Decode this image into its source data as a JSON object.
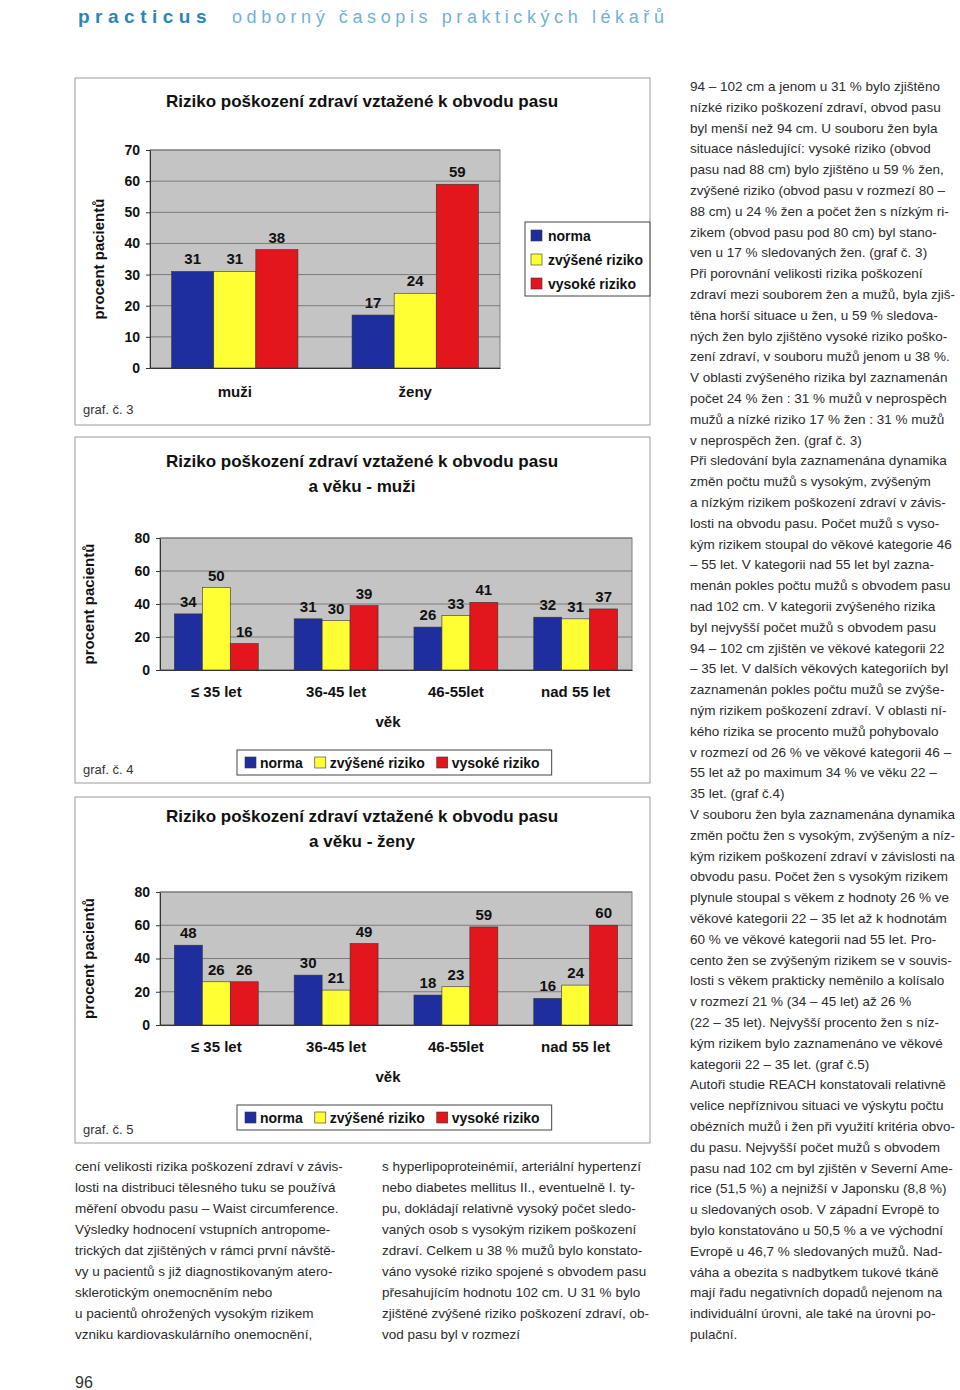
{
  "header": {
    "brand": "practicus",
    "subtitle": "odborný časopis praktických lékařů"
  },
  "chart_data": [
    {
      "type": "bar",
      "title": [
        "Riziko poškození zdraví vztažené k obvodu pasu"
      ],
      "y_label": "procent pacientů",
      "categories": [
        "muži",
        "ženy"
      ],
      "series": [
        {
          "name": "norma",
          "color": "#1f2e9e",
          "values": [
            31,
            17
          ]
        },
        {
          "name": "zvýšené riziko",
          "color": "#ffff33",
          "values": [
            31,
            24
          ]
        },
        {
          "name": "vysoké riziko",
          "color": "#e3161c",
          "values": [
            38,
            59
          ]
        }
      ],
      "ylim": [
        0,
        70
      ],
      "yticks": [
        0,
        10,
        20,
        30,
        40,
        50,
        60,
        70
      ],
      "grid": true,
      "legend": "right",
      "data_labels": true,
      "caption": "graf. č. 3"
    },
    {
      "type": "bar",
      "title": [
        "Riziko poškození zdraví vztažené k obvodu pasu",
        "a věku - muži"
      ],
      "y_label": "procent pacientů",
      "x_label": "věk",
      "categories": [
        "≤ 35 let",
        "36-45 let",
        "46-55let",
        "nad 55 let"
      ],
      "series": [
        {
          "name": "norma",
          "color": "#1f2e9e",
          "values": [
            34,
            31,
            26,
            32
          ]
        },
        {
          "name": "zvýšené riziko",
          "color": "#ffff33",
          "values": [
            50,
            30,
            33,
            31
          ]
        },
        {
          "name": "vysoké riziko",
          "color": "#e3161c",
          "values": [
            16,
            39,
            41,
            37
          ]
        }
      ],
      "ylim": [
        0,
        80
      ],
      "yticks": [
        0,
        20,
        40,
        60,
        80
      ],
      "grid": true,
      "legend": "bottom",
      "data_labels": true,
      "caption": "graf. č. 4"
    },
    {
      "type": "bar",
      "title": [
        "Riziko poškození zdraví vztažené k obvodu pasu",
        "a věku - ženy"
      ],
      "y_label": "procent pacientů",
      "x_label": "věk",
      "categories": [
        "≤ 35 let",
        "36-45 let",
        "46-55let",
        "nad 55 let"
      ],
      "series": [
        {
          "name": "norma",
          "color": "#1f2e9e",
          "values": [
            48,
            30,
            18,
            16
          ]
        },
        {
          "name": "zvýšené riziko",
          "color": "#ffff33",
          "values": [
            26,
            21,
            23,
            24
          ]
        },
        {
          "name": "vysoké riziko",
          "color": "#e3161c",
          "values": [
            26,
            49,
            59,
            60
          ]
        }
      ],
      "ylim": [
        0,
        80
      ],
      "yticks": [
        0,
        20,
        40,
        60,
        80
      ],
      "grid": true,
      "legend": "bottom",
      "data_labels": true,
      "caption": "graf. č. 5"
    }
  ],
  "columns": [
    {
      "lines": [
        "cení velikosti rizika poškození zdraví v závis-",
        "losti na distribuci tělesného tuku se používá",
        "měření obvodu pasu – Waist circumference.",
        "Výsledky hodnocení vstupních antropome-",
        "trických dat zjištěných v rámci první návště-",
        "vy u pacientů s již diagnostikovaným atero-",
        "sklerotickým onemocněním nebo",
        "u pacientů ohrožených vysokým rizikem",
        "vzniku kardiovaskulárního onemocnění,"
      ]
    },
    {
      "lines": [
        "s hyperlipoproteinémií, arteriální hypertenzí",
        "nebo diabetes mellitus II., eventuelně I. ty-",
        "pu, dokládají relativně vysoký počet sledo-",
        "vaných osob s vysokým rizikem poškození",
        "zdraví. Celkem u 38 % mužů bylo konstato-",
        "váno vysoké riziko spojené s obvodem pasu",
        "přesahujícím hodnotu 102 cm. U 31 % bylo",
        "zjištěné zvýšené riziko poškození zdraví, ob-",
        "vod pasu byl v rozmezí"
      ]
    },
    {
      "lines": [
        "94 – 102 cm a jenom u 31 % bylo zjištěno",
        "nízké riziko poškození zdraví, obvod pasu",
        "byl menší než 94 cm. U souboru žen byla",
        "situace následující: vysoké riziko (obvod",
        "pasu nad 88 cm) bylo zjištěno u 59 % žen,",
        "zvýšené riziko (obvod pasu v rozmezí 80 –",
        "88 cm) u 24 % žen a počet žen s nízkým ri-",
        "zikem (obvod pasu pod 80 cm) byl stano-",
        "ven u 17 % sledovaných žen. (graf č. 3)",
        "Při porovnání velikosti rizika poškození",
        "zdraví mezi souborem žen a mužů, byla zjiš-",
        "těna horší situace u žen, u 59 % sledova-",
        "ných žen bylo zjištěno vysoké riziko poško-",
        "zení zdraví, v souboru mužů jenom u 38 %.",
        "V oblasti zvýšeného rizika byl zaznamenán",
        "počet 24 % žen : 31 % mužů v neprospěch",
        "mužů a nízké riziko 17 % žen : 31 % mužů",
        "v neprospěch žen. (graf č. 3)",
        "Při sledování byla zaznamenána dynamika",
        "změn počtu mužů s vysokým, zvýšeným",
        "a nízkým rizikem poškození zdraví v závis-",
        "losti na obvodu pasu. Počet mužů s vyso-",
        "kým rizikem stoupal do věkové kategorie 46",
        "– 55 let. V kategorii nad 55 let byl zazna-",
        "menán pokles počtu mužů s obvodem pasu",
        "nad 102 cm. V kategorii zvýšeného rizika",
        "byl nejvyšší počet mužů s obvodem pasu",
        "94 – 102 cm zjištěn ve věkové kategorii 22",
        "– 35 let. V dalších věkových kategoriích byl",
        "zaznamenán pokles počtu mužů se zvýše-",
        "ným rizikem poškození zdraví. V oblasti ní-",
        "kého rizika se procento mužů pohybovalo",
        "v rozmezí od 26 % ve věkové kategorii 46 –",
        "55 let až po maximum 34 % ve věku 22 –",
        "35 let. (graf č.4)",
        "V souboru žen byla zaznamenána dynamika",
        "změn počtu žen s vysokým, zvýšeným a níz-",
        "kým rizikem poškození zdraví v závislosti na",
        "obvodu pasu. Počet žen s vysokým rizikem",
        "plynule stoupal s věkem z hodnoty 26 % ve",
        "věkové kategorii 22 – 35 let až k hodnotám",
        "60 % ve věkové kategorii nad 55 let. Pro-",
        "cento žen se zvýšeným rizikem se v souvis-",
        "losti s věkem prakticky neměnilo a kolísalo",
        "v rozmezí 21 % (34 – 45 let) až 26 %",
        "(22 – 35 let). Nejvyšší procento žen s níz-",
        "kým rizikem bylo zaznamenáno ve věkové",
        "kategorii 22 – 35 let. (graf č.5)",
        "Autoři studie REACH konstatovali relativně",
        "velice nepříznivou situaci ve výskytu počtu",
        "obézních mužů i žen při využití kritéria obvo-",
        "du pasu. Nejvyšší počet mužů s obvodem",
        "pasu nad 102 cm byl zjištěn v Severní Ame-",
        "rice (51,5 %) a nejnižší v Japonsku (8,8 %)",
        "u sledovaných osob. V západní Evropě to",
        "bylo konstatováno u 50,5 % a ve východní",
        "Evropě u 46,7 % sledovaných mužů. Nad-",
        "váha a obezita s nadbytkem tukové tkáně",
        "mají řadu negativních dopadů nejenom na",
        "individuální úrovni, ale také na úrovni po-",
        "pulační."
      ]
    }
  ],
  "page_number": "96"
}
